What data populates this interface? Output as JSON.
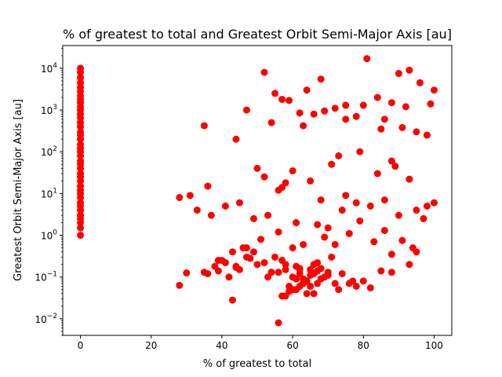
{
  "chart_data": {
    "type": "scatter",
    "title": "% of greatest to total and Greatest Orbit Semi-Major Axis [au]",
    "xlabel": "% of greatest to total",
    "ylabel": "Greatest Orbit Semi-Major Axis [au]",
    "xlim": [
      -5,
      105
    ],
    "ylim": [
      0.004,
      35000
    ],
    "yscale": "log",
    "grid": false,
    "legend": "none",
    "marker_color": "#ff0000",
    "xticks": [
      {
        "value": 0,
        "label": "0"
      },
      {
        "value": 20,
        "label": "20"
      },
      {
        "value": 40,
        "label": "40"
      },
      {
        "value": 60,
        "label": "60"
      },
      {
        "value": 80,
        "label": "80"
      },
      {
        "value": 100,
        "label": "100"
      }
    ],
    "yticks": [
      {
        "value": 0.01,
        "base": "10",
        "exp": "−2"
      },
      {
        "value": 0.1,
        "base": "10",
        "exp": "−1"
      },
      {
        "value": 1,
        "base": "10",
        "exp": "0"
      },
      {
        "value": 10,
        "base": "10",
        "exp": "1"
      },
      {
        "value": 100,
        "base": "10",
        "exp": "2"
      },
      {
        "value": 1000,
        "base": "10",
        "exp": "3"
      },
      {
        "value": 10000,
        "base": "10",
        "exp": "4"
      }
    ],
    "series": [
      {
        "x": [
          0,
          0,
          0,
          0,
          0,
          0,
          0,
          0,
          0,
          0,
          0,
          0,
          0,
          0,
          0,
          0,
          0,
          0,
          0,
          0,
          0,
          0,
          0,
          0,
          0,
          0,
          0,
          0,
          0,
          0,
          0,
          0,
          0,
          0,
          0,
          0,
          0,
          0,
          0,
          0,
          81,
          52,
          68,
          90,
          93,
          84,
          64,
          75,
          59,
          96,
          100,
          72,
          88,
          55,
          47,
          66,
          78,
          92,
          86,
          57,
          62,
          69,
          99,
          80,
          75,
          54,
          63,
          85,
          95,
          91,
          35,
          44,
          36,
          60,
          73,
          88,
          98,
          50,
          65,
          58,
          52,
          56,
          75,
          84,
          71,
          89,
          93,
          57,
          79,
          68,
          28,
          31,
          37,
          41,
          33,
          45,
          49,
          53,
          61,
          67,
          70,
          74,
          78,
          82,
          86,
          90,
          95,
          98,
          100,
          43,
          39,
          47,
          51,
          56,
          63,
          69,
          76,
          83,
          88,
          94,
          58,
          60,
          62,
          64,
          66,
          68,
          70,
          59,
          61,
          63,
          65,
          67,
          69,
          57,
          60,
          62,
          64,
          66,
          55,
          58,
          61,
          63,
          65,
          67,
          60,
          62,
          64,
          53,
          56,
          71,
          72,
          74,
          68,
          66,
          58,
          61,
          63,
          54,
          50,
          48,
          45,
          42,
          40,
          38,
          36,
          47,
          49,
          52,
          73,
          76,
          78,
          80,
          46,
          44,
          41,
          57,
          59,
          65,
          67,
          70,
          56,
          43,
          28,
          82,
          97,
          88,
          95,
          91,
          86,
          79,
          72,
          35,
          30,
          39,
          44,
          77,
          85,
          93,
          60,
          62
        ],
        "y": [
          10000,
          8000,
          6000,
          4500,
          3500,
          2800,
          2200,
          1800,
          1500,
          1200,
          1000,
          800,
          650,
          500,
          400,
          300,
          250,
          200,
          150,
          120,
          100,
          80,
          60,
          50,
          40,
          30,
          25,
          20,
          15,
          12,
          10,
          8,
          6,
          5,
          4,
          3,
          2.5,
          2,
          1.5,
          1,
          17000,
          8000,
          5500,
          7500,
          9000,
          2000,
          3000,
          1300,
          1700,
          4500,
          3000,
          1100,
          1500,
          2500,
          1000,
          800,
          700,
          1200,
          600,
          1800,
          850,
          950,
          1400,
          1300,
          600,
          500,
          420,
          350,
          300,
          380,
          420,
          200,
          15,
          35,
          80,
          60,
          250,
          40,
          20,
          18,
          25,
          12,
          9,
          30,
          50,
          45,
          22,
          14,
          100,
          7,
          8,
          9,
          3,
          5,
          4,
          6,
          2.5,
          3,
          2,
          1.8,
          1.5,
          4,
          6,
          5,
          7,
          3,
          4,
          5,
          6,
          0.4,
          0.25,
          0.5,
          0.8,
          1.2,
          0.6,
          0.9,
          1.1,
          0.7,
          0.35,
          0.5,
          0.15,
          0.1,
          0.12,
          0.08,
          0.2,
          0.09,
          0.13,
          0.06,
          0.18,
          0.07,
          0.11,
          0.14,
          0.1,
          0.25,
          0.05,
          0.16,
          0.04,
          0.12,
          0.3,
          0.2,
          0.09,
          0.07,
          0.15,
          0.22,
          0.05,
          0.06,
          0.08,
          0.1,
          0.13,
          0.3,
          0.07,
          0.12,
          0.16,
          0.04,
          0.035,
          0.05,
          0.09,
          0.13,
          0.2,
          0.28,
          0.15,
          0.1,
          0.25,
          0.18,
          0.12,
          0.3,
          0.4,
          0.22,
          0.05,
          0.07,
          0.06,
          0.08,
          0.5,
          0.18,
          0.22,
          0.035,
          0.045,
          0.06,
          0.07,
          0.11,
          0.008,
          0.028,
          0.063,
          0.055,
          2.5,
          0.13,
          0.4,
          0.75,
          1.3,
          2.2,
          0.6,
          0.13,
          0.125,
          0.14,
          0.17,
          0.08,
          0.14,
          0.2,
          0.5,
          0.15
        ]
      }
    ]
  }
}
